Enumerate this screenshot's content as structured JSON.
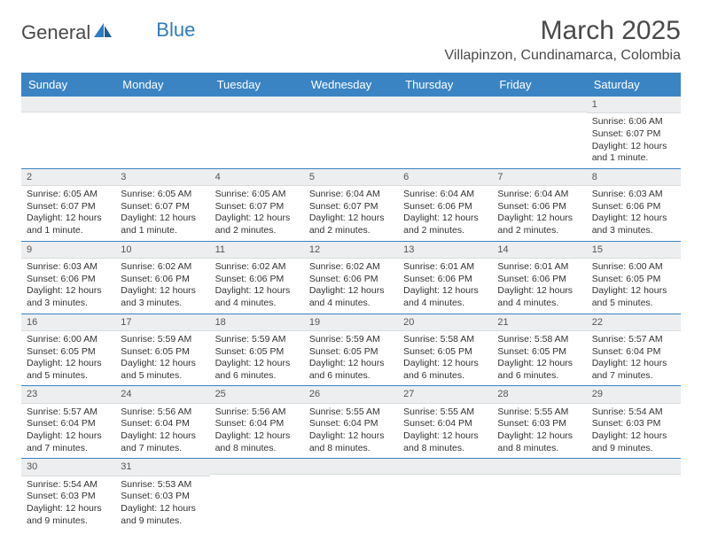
{
  "logo": {
    "text_a": "General",
    "text_b": "Blue"
  },
  "title": "March 2025",
  "location": "Villapinzon, Cundinamarca, Colombia",
  "day_names": [
    "Sunday",
    "Monday",
    "Tuesday",
    "Wednesday",
    "Thursday",
    "Friday",
    "Saturday"
  ],
  "colors": {
    "header_bg": "#3b84c4",
    "header_text": "#ffffff",
    "daynum_bg": "#eceeef",
    "week_border": "#3b84c4"
  },
  "weeks": [
    [
      null,
      null,
      null,
      null,
      null,
      null,
      {
        "n": "1",
        "sunrise": "Sunrise: 6:06 AM",
        "sunset": "Sunset: 6:07 PM",
        "daylight": "Daylight: 12 hours and 1 minute."
      }
    ],
    [
      {
        "n": "2",
        "sunrise": "Sunrise: 6:05 AM",
        "sunset": "Sunset: 6:07 PM",
        "daylight": "Daylight: 12 hours and 1 minute."
      },
      {
        "n": "3",
        "sunrise": "Sunrise: 6:05 AM",
        "sunset": "Sunset: 6:07 PM",
        "daylight": "Daylight: 12 hours and 1 minute."
      },
      {
        "n": "4",
        "sunrise": "Sunrise: 6:05 AM",
        "sunset": "Sunset: 6:07 PM",
        "daylight": "Daylight: 12 hours and 2 minutes."
      },
      {
        "n": "5",
        "sunrise": "Sunrise: 6:04 AM",
        "sunset": "Sunset: 6:07 PM",
        "daylight": "Daylight: 12 hours and 2 minutes."
      },
      {
        "n": "6",
        "sunrise": "Sunrise: 6:04 AM",
        "sunset": "Sunset: 6:06 PM",
        "daylight": "Daylight: 12 hours and 2 minutes."
      },
      {
        "n": "7",
        "sunrise": "Sunrise: 6:04 AM",
        "sunset": "Sunset: 6:06 PM",
        "daylight": "Daylight: 12 hours and 2 minutes."
      },
      {
        "n": "8",
        "sunrise": "Sunrise: 6:03 AM",
        "sunset": "Sunset: 6:06 PM",
        "daylight": "Daylight: 12 hours and 3 minutes."
      }
    ],
    [
      {
        "n": "9",
        "sunrise": "Sunrise: 6:03 AM",
        "sunset": "Sunset: 6:06 PM",
        "daylight": "Daylight: 12 hours and 3 minutes."
      },
      {
        "n": "10",
        "sunrise": "Sunrise: 6:02 AM",
        "sunset": "Sunset: 6:06 PM",
        "daylight": "Daylight: 12 hours and 3 minutes."
      },
      {
        "n": "11",
        "sunrise": "Sunrise: 6:02 AM",
        "sunset": "Sunset: 6:06 PM",
        "daylight": "Daylight: 12 hours and 4 minutes."
      },
      {
        "n": "12",
        "sunrise": "Sunrise: 6:02 AM",
        "sunset": "Sunset: 6:06 PM",
        "daylight": "Daylight: 12 hours and 4 minutes."
      },
      {
        "n": "13",
        "sunrise": "Sunrise: 6:01 AM",
        "sunset": "Sunset: 6:06 PM",
        "daylight": "Daylight: 12 hours and 4 minutes."
      },
      {
        "n": "14",
        "sunrise": "Sunrise: 6:01 AM",
        "sunset": "Sunset: 6:06 PM",
        "daylight": "Daylight: 12 hours and 4 minutes."
      },
      {
        "n": "15",
        "sunrise": "Sunrise: 6:00 AM",
        "sunset": "Sunset: 6:05 PM",
        "daylight": "Daylight: 12 hours and 5 minutes."
      }
    ],
    [
      {
        "n": "16",
        "sunrise": "Sunrise: 6:00 AM",
        "sunset": "Sunset: 6:05 PM",
        "daylight": "Daylight: 12 hours and 5 minutes."
      },
      {
        "n": "17",
        "sunrise": "Sunrise: 5:59 AM",
        "sunset": "Sunset: 6:05 PM",
        "daylight": "Daylight: 12 hours and 5 minutes."
      },
      {
        "n": "18",
        "sunrise": "Sunrise: 5:59 AM",
        "sunset": "Sunset: 6:05 PM",
        "daylight": "Daylight: 12 hours and 6 minutes."
      },
      {
        "n": "19",
        "sunrise": "Sunrise: 5:59 AM",
        "sunset": "Sunset: 6:05 PM",
        "daylight": "Daylight: 12 hours and 6 minutes."
      },
      {
        "n": "20",
        "sunrise": "Sunrise: 5:58 AM",
        "sunset": "Sunset: 6:05 PM",
        "daylight": "Daylight: 12 hours and 6 minutes."
      },
      {
        "n": "21",
        "sunrise": "Sunrise: 5:58 AM",
        "sunset": "Sunset: 6:05 PM",
        "daylight": "Daylight: 12 hours and 6 minutes."
      },
      {
        "n": "22",
        "sunrise": "Sunrise: 5:57 AM",
        "sunset": "Sunset: 6:04 PM",
        "daylight": "Daylight: 12 hours and 7 minutes."
      }
    ],
    [
      {
        "n": "23",
        "sunrise": "Sunrise: 5:57 AM",
        "sunset": "Sunset: 6:04 PM",
        "daylight": "Daylight: 12 hours and 7 minutes."
      },
      {
        "n": "24",
        "sunrise": "Sunrise: 5:56 AM",
        "sunset": "Sunset: 6:04 PM",
        "daylight": "Daylight: 12 hours and 7 minutes."
      },
      {
        "n": "25",
        "sunrise": "Sunrise: 5:56 AM",
        "sunset": "Sunset: 6:04 PM",
        "daylight": "Daylight: 12 hours and 8 minutes."
      },
      {
        "n": "26",
        "sunrise": "Sunrise: 5:55 AM",
        "sunset": "Sunset: 6:04 PM",
        "daylight": "Daylight: 12 hours and 8 minutes."
      },
      {
        "n": "27",
        "sunrise": "Sunrise: 5:55 AM",
        "sunset": "Sunset: 6:04 PM",
        "daylight": "Daylight: 12 hours and 8 minutes."
      },
      {
        "n": "28",
        "sunrise": "Sunrise: 5:55 AM",
        "sunset": "Sunset: 6:03 PM",
        "daylight": "Daylight: 12 hours and 8 minutes."
      },
      {
        "n": "29",
        "sunrise": "Sunrise: 5:54 AM",
        "sunset": "Sunset: 6:03 PM",
        "daylight": "Daylight: 12 hours and 9 minutes."
      }
    ],
    [
      {
        "n": "30",
        "sunrise": "Sunrise: 5:54 AM",
        "sunset": "Sunset: 6:03 PM",
        "daylight": "Daylight: 12 hours and 9 minutes."
      },
      {
        "n": "31",
        "sunrise": "Sunrise: 5:53 AM",
        "sunset": "Sunset: 6:03 PM",
        "daylight": "Daylight: 12 hours and 9 minutes."
      },
      null,
      null,
      null,
      null,
      null
    ]
  ]
}
